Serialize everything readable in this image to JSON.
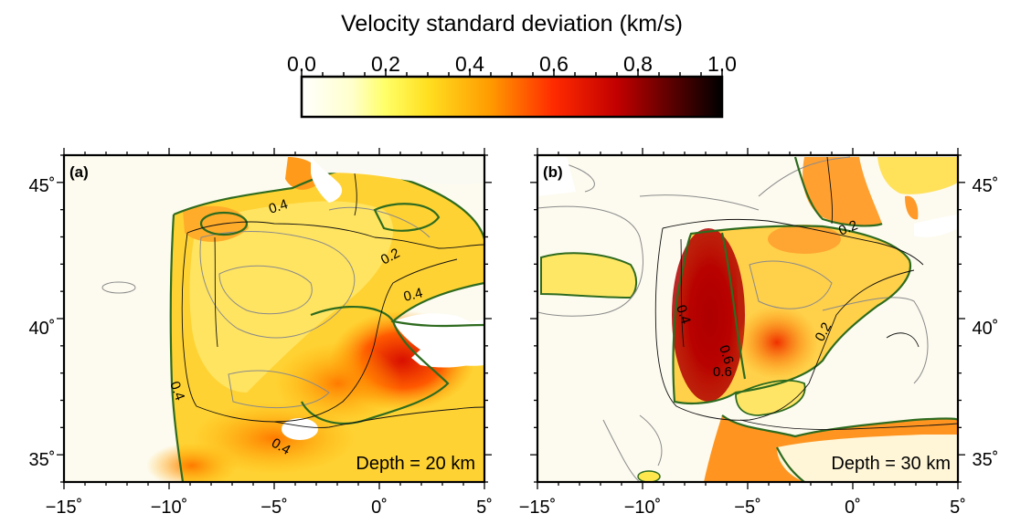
{
  "colorbar": {
    "title": "Velocity standard deviation (km/s)",
    "tick_labels": [
      "0.0",
      "0.2",
      "0.4",
      "0.6",
      "0.8",
      "1.0"
    ],
    "range": [
      0.0,
      1.0
    ],
    "colormap": [
      "#ffffff",
      "#ffff55",
      "#ffd200",
      "#ff8c00",
      "#ff1a00",
      "#b30000",
      "#000000"
    ]
  },
  "panels": [
    {
      "label": "(a)",
      "depth_text": "Depth = 20 km",
      "contour_labels": [
        "0.4",
        "0.2",
        "0.4",
        "0.4",
        "0.4"
      ]
    },
    {
      "label": "(b)",
      "depth_text": "Depth = 30 km",
      "contour_labels": [
        "0.2",
        "0.4",
        "0.6",
        "0.6",
        "0.2"
      ]
    }
  ],
  "axes": {
    "lon_range": [
      -15,
      5
    ],
    "lat_range": [
      34,
      46
    ],
    "x_tick_labels": [
      "−15˚",
      "−10˚",
      "−5˚",
      "0˚",
      "5˚"
    ],
    "y_tick_labels": [
      "45˚",
      "40˚",
      "35˚"
    ]
  },
  "colors": {
    "contour_major": "#2e6b1f",
    "contour_minor": "#8a8a8a",
    "coastline": "#111111",
    "frame": "#000000"
  }
}
